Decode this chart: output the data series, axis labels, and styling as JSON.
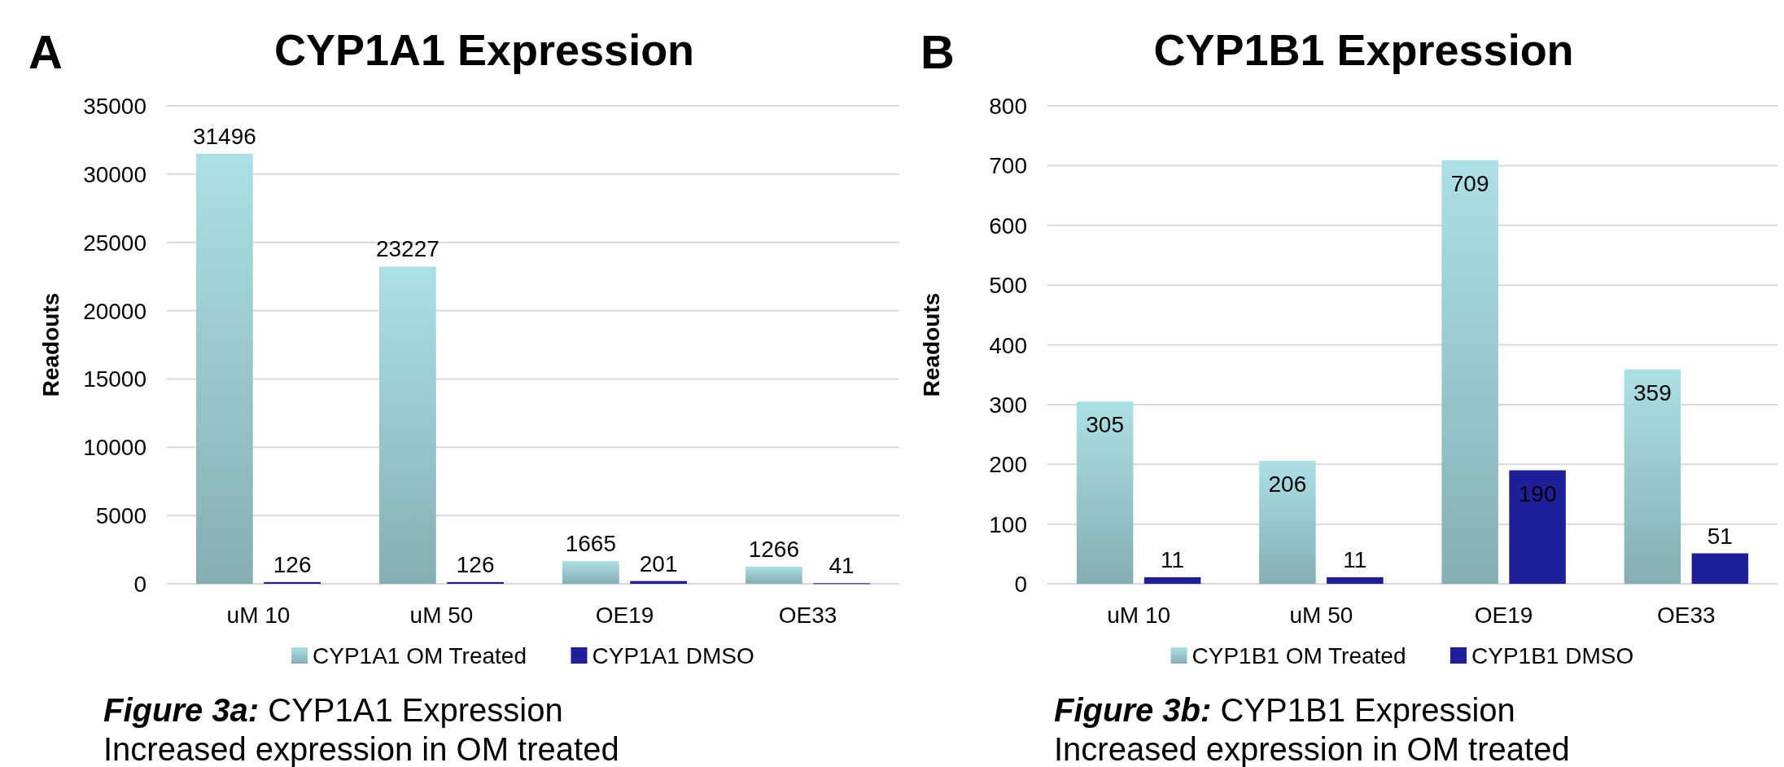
{
  "chart_data": [
    {
      "type": "bar",
      "title": "CYP1A1 Expression",
      "ylabel": "Readouts",
      "categories": [
        "uM 10",
        "uM 50",
        "OE19",
        "OE33"
      ],
      "series": [
        {
          "name": "CYP1A1 OM Treated",
          "color": "#9ccdd1",
          "values": [
            31496,
            23227,
            1665,
            1266
          ]
        },
        {
          "name": "CYP1A1 DMSO",
          "color": "#1f1f99",
          "values": [
            126,
            126,
            201,
            41
          ]
        }
      ],
      "ylim": [
        0,
        35000
      ],
      "yticks": [
        0,
        5000,
        10000,
        15000,
        20000,
        25000,
        30000,
        35000
      ],
      "grid": "y",
      "legend": "bottom",
      "data_labels": true,
      "annotations": [
        "A",
        "Figure 3a: CYP1A1 Expression",
        "Increased expression in OM treated"
      ]
    },
    {
      "type": "bar",
      "title": "CYP1B1 Expression",
      "ylabel": "Readouts",
      "categories": [
        "uM 10",
        "uM 50",
        "OE19",
        "OE33"
      ],
      "series": [
        {
          "name": "CYP1B1 OM Treated",
          "color": "#9ccdd1",
          "values": [
            305,
            206,
            709,
            359
          ]
        },
        {
          "name": "CYP1B1 DMSO",
          "color": "#1f1f99",
          "values": [
            11,
            11,
            190,
            51
          ]
        }
      ],
      "ylim": [
        0,
        800
      ],
      "yticks": [
        0,
        100,
        200,
        300,
        400,
        500,
        600,
        700,
        800
      ],
      "grid": "y",
      "legend": "bottom",
      "data_labels": true,
      "annotations": [
        "B",
        "Figure 3b: CYP1B1 Expression",
        "Increased expression in OM treated"
      ]
    }
  ]
}
